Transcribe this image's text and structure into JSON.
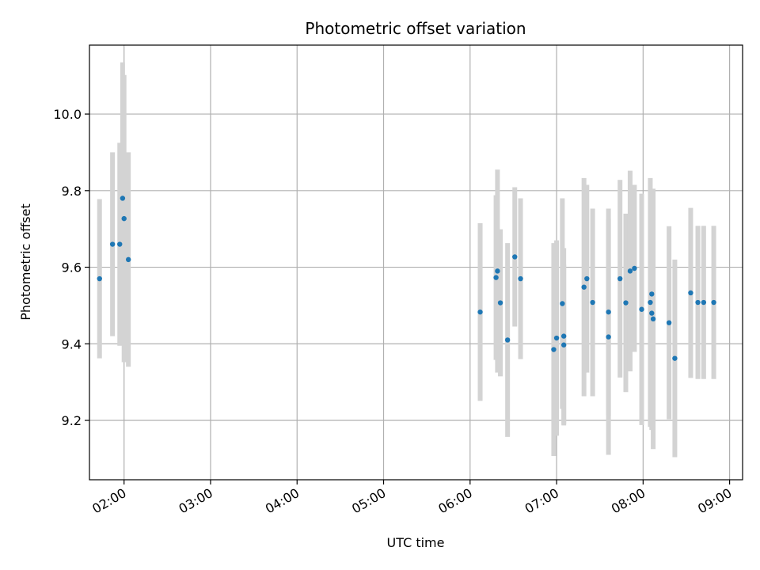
{
  "chart_data": {
    "type": "scatter",
    "title": "Photometric offset variation",
    "xlabel": "UTC time",
    "ylabel": "Photometric offset",
    "x_is_time": true,
    "xlim": [
      "01:36",
      "09:09"
    ],
    "ylim": [
      9.045,
      10.18
    ],
    "xticks": [
      "02:00",
      "03:00",
      "04:00",
      "05:00",
      "06:00",
      "07:00",
      "08:00",
      "09:00"
    ],
    "yticks": [
      9.2,
      9.4,
      9.6,
      9.8,
      10.0
    ],
    "ytick_labels": [
      "9.2",
      "9.4",
      "9.6",
      "9.8",
      "10.0"
    ],
    "grid": true,
    "legend": false,
    "colors": {
      "marker": "#1f77b4",
      "errorbar": "#d3d3d3",
      "grid": "#b0b0b0",
      "axes": "#000000"
    },
    "points": [
      {
        "t": "01:43",
        "y": 9.57,
        "err": 0.208
      },
      {
        "t": "01:52",
        "y": 9.66,
        "err": 0.24
      },
      {
        "t": "01:57",
        "y": 9.66,
        "err": 0.265
      },
      {
        "t": "01:59",
        "y": 9.78,
        "err": 0.355
      },
      {
        "t": "02:00",
        "y": 9.727,
        "err": 0.375
      },
      {
        "t": "02:03",
        "y": 9.62,
        "err": 0.28
      },
      {
        "t": "06:07",
        "y": 9.483,
        "err": 0.232
      },
      {
        "t": "06:18",
        "y": 9.573,
        "err": 0.215
      },
      {
        "t": "06:19",
        "y": 9.59,
        "err": 0.265
      },
      {
        "t": "06:21",
        "y": 9.507,
        "err": 0.192
      },
      {
        "t": "06:26",
        "y": 9.41,
        "err": 0.253
      },
      {
        "t": "06:31",
        "y": 9.627,
        "err": 0.182
      },
      {
        "t": "06:35",
        "y": 9.57,
        "err": 0.21
      },
      {
        "t": "06:58",
        "y": 9.385,
        "err": 0.278
      },
      {
        "t": "07:00",
        "y": 9.415,
        "err": 0.255
      },
      {
        "t": "07:04",
        "y": 9.505,
        "err": 0.275
      },
      {
        "t": "07:05",
        "y": 9.397,
        "err": 0.21
      },
      {
        "t": "07:05",
        "y": 9.42,
        "err": 0.23
      },
      {
        "t": "07:19",
        "y": 9.548,
        "err": 0.285
      },
      {
        "t": "07:21",
        "y": 9.57,
        "err": 0.245
      },
      {
        "t": "07:25",
        "y": 9.508,
        "err": 0.245
      },
      {
        "t": "07:36",
        "y": 9.483,
        "err": 0.27
      },
      {
        "t": "07:36",
        "y": 9.418,
        "err": 0.308
      },
      {
        "t": "07:44",
        "y": 9.57,
        "err": 0.258
      },
      {
        "t": "07:48",
        "y": 9.507,
        "err": 0.233
      },
      {
        "t": "07:51",
        "y": 9.59,
        "err": 0.262
      },
      {
        "t": "07:54",
        "y": 9.597,
        "err": 0.218
      },
      {
        "t": "07:59",
        "y": 9.49,
        "err": 0.302
      },
      {
        "t": "08:05",
        "y": 9.508,
        "err": 0.325
      },
      {
        "t": "08:06",
        "y": 9.53,
        "err": 0.25
      },
      {
        "t": "08:06",
        "y": 9.48,
        "err": 0.305
      },
      {
        "t": "08:07",
        "y": 9.465,
        "err": 0.34
      },
      {
        "t": "08:18",
        "y": 9.455,
        "err": 0.252
      },
      {
        "t": "08:22",
        "y": 9.362,
        "err": 0.258
      },
      {
        "t": "08:33",
        "y": 9.533,
        "err": 0.222
      },
      {
        "t": "08:38",
        "y": 9.508,
        "err": 0.2
      },
      {
        "t": "08:42",
        "y": 9.508,
        "err": 0.2
      },
      {
        "t": "08:49",
        "y": 9.508,
        "err": 0.2
      }
    ]
  }
}
